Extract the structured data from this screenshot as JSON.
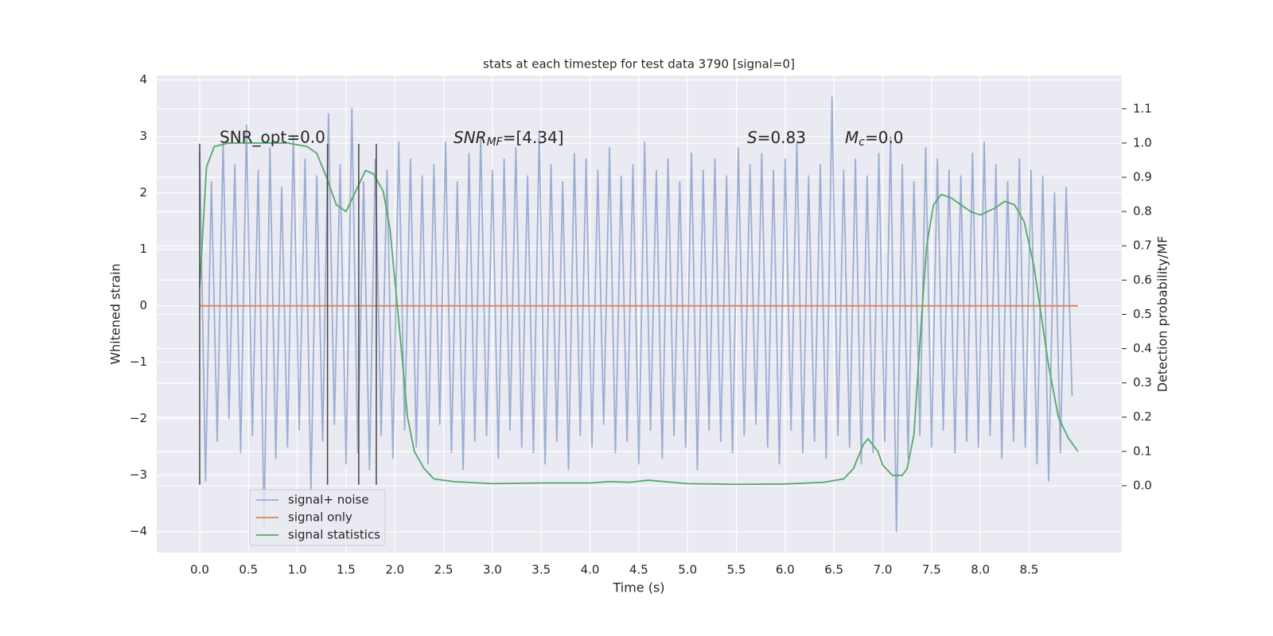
{
  "chart_data": {
    "type": "line",
    "title": "stats at each timestep for test data 3790 [signal=0]",
    "xlabel": "Time (s)",
    "ylabel": "Whitened strain",
    "y2label": "Detection probability/MF",
    "xlim": [
      -0.44,
      9.45
    ],
    "ylim": [
      -4.37,
      4.08
    ],
    "y2lim": [
      -0.195,
      1.197
    ],
    "xticks": [
      {
        "value": 0,
        "label": "0.0"
      },
      0.5,
      {
        "value": 1,
        "label": "1.0"
      },
      1.5,
      {
        "value": 2,
        "label": "2.0"
      },
      2.5,
      {
        "value": 3,
        "label": "3.0"
      },
      3.5,
      {
        "value": 4,
        "label": "4.0"
      },
      4.5,
      {
        "value": 5,
        "label": "5.0"
      },
      5.5,
      {
        "value": 6,
        "label": "6.0"
      },
      6.5,
      {
        "value": 7,
        "label": "7.0"
      },
      7.5,
      {
        "value": 8,
        "label": "8.0"
      },
      8.5
    ],
    "yticks": [
      {
        "value": -4,
        "label": "−4"
      },
      {
        "value": -3,
        "label": "−3"
      },
      {
        "value": -2,
        "label": "−2"
      },
      {
        "value": -1,
        "label": "−1"
      },
      0,
      1,
      2,
      3,
      4
    ],
    "y2ticks": [
      {
        "value": 0,
        "label": "0.0"
      },
      0.1,
      0.2,
      0.3,
      0.4,
      0.5,
      0.6,
      0.7,
      0.8,
      0.9,
      {
        "value": 1,
        "label": "1.0"
      },
      1.1
    ],
    "grid": true,
    "legend": "lower left",
    "series": [
      {
        "name": "signal+ noise",
        "color": "#4c72b0",
        "alpha": 0.5,
        "x": [
          0,
          0.06,
          0.12,
          0.18,
          0.24,
          0.3,
          0.36,
          0.42,
          0.48,
          0.54,
          0.6,
          0.66,
          0.72,
          0.78,
          0.84,
          0.9,
          0.96,
          1.02,
          1.08,
          1.14,
          1.2,
          1.26,
          1.32,
          1.38,
          1.44,
          1.5,
          1.56,
          1.62,
          1.68,
          1.74,
          1.8,
          1.86,
          1.92,
          1.98,
          2.04,
          2.1,
          2.16,
          2.22,
          2.28,
          2.34,
          2.4,
          2.46,
          2.52,
          2.58,
          2.64,
          2.7,
          2.76,
          2.82,
          2.88,
          2.94,
          3.0,
          3.06,
          3.12,
          3.18,
          3.24,
          3.3,
          3.36,
          3.42,
          3.48,
          3.54,
          3.6,
          3.66,
          3.72,
          3.78,
          3.84,
          3.9,
          3.96,
          4.02,
          4.08,
          4.14,
          4.2,
          4.26,
          4.32,
          4.38,
          4.44,
          4.5,
          4.56,
          4.62,
          4.68,
          4.74,
          4.8,
          4.86,
          4.92,
          4.98,
          5.04,
          5.1,
          5.16,
          5.22,
          5.28,
          5.34,
          5.4,
          5.46,
          5.52,
          5.58,
          5.64,
          5.7,
          5.76,
          5.82,
          5.88,
          5.94,
          6.0,
          6.06,
          6.12,
          6.18,
          6.24,
          6.3,
          6.36,
          6.42,
          6.48,
          6.54,
          6.6,
          6.66,
          6.72,
          6.78,
          6.84,
          6.9,
          6.96,
          7.02,
          7.08,
          7.14,
          7.2,
          7.26,
          7.32,
          7.38,
          7.44,
          7.5,
          7.56,
          7.62,
          7.68,
          7.74,
          7.8,
          7.86,
          7.92,
          7.98,
          8.04,
          8.1,
          8.16,
          8.22,
          8.28,
          8.34,
          8.4,
          8.46,
          8.52,
          8.58,
          8.64,
          8.7,
          8.76,
          8.82,
          8.88,
          8.94
        ],
        "values": [
          2.7,
          -3.1,
          2.2,
          -2.4,
          2.9,
          -2.0,
          2.5,
          -2.6,
          3.2,
          -2.3,
          2.4,
          -3.9,
          2.8,
          -2.7,
          2.1,
          -2.5,
          3.0,
          -2.2,
          2.6,
          -3.3,
          2.3,
          -2.4,
          3.4,
          -2.1,
          2.5,
          -2.8,
          3.5,
          -2.6,
          2.2,
          -2.9,
          2.6,
          -2.3,
          2.4,
          -2.7,
          2.9,
          -2.2,
          2.6,
          -2.5,
          2.3,
          -2.8,
          2.5,
          -2.1,
          2.9,
          -2.6,
          2.2,
          -2.9,
          2.7,
          -2.4,
          3.0,
          -2.3,
          2.4,
          -2.7,
          2.6,
          -2.2,
          2.8,
          -2.5,
          2.3,
          -2.6,
          3.1,
          -2.8,
          2.5,
          -2.4,
          2.2,
          -2.9,
          2.7,
          -2.3,
          2.6,
          -2.5,
          2.4,
          -2.1,
          2.8,
          -2.6,
          2.3,
          -2.4,
          2.5,
          -2.8,
          2.9,
          -2.2,
          2.4,
          -2.7,
          2.6,
          -2.3,
          2.2,
          -2.5,
          2.7,
          -2.9,
          2.4,
          -2.2,
          2.6,
          -2.4,
          2.3,
          -2.6,
          2.8,
          -2.3,
          2.5,
          -2.1,
          2.7,
          -2.5,
          2.4,
          -2.8,
          2.6,
          -2.2,
          2.9,
          -2.6,
          2.3,
          -2.4,
          2.5,
          -2.7,
          3.7,
          -2.3,
          2.4,
          -2.5,
          2.6,
          -2.8,
          2.3,
          -2.6,
          2.7,
          -2.4,
          3.0,
          -4.0,
          2.5,
          -2.7,
          2.2,
          -2.3,
          2.8,
          -2.5,
          2.6,
          -2.2,
          2.4,
          -2.6,
          2.3,
          -2.4,
          2.7,
          -2.5,
          2.9,
          -2.3,
          2.5,
          -2.7,
          2.2,
          -2.4,
          2.6,
          -2.5,
          2.4,
          -2.8,
          2.3,
          -3.1,
          2.0,
          -2.6,
          2.1,
          -1.6
        ]
      },
      {
        "name": "signal only",
        "color": "#dd8452",
        "x": [
          0,
          9
        ],
        "values": [
          0,
          0
        ]
      },
      {
        "name": "signal statistics",
        "color": "#55a868",
        "axis": "y2",
        "x": [
          0,
          0.07,
          0.15,
          0.3,
          0.6,
          0.9,
          1.1,
          1.2,
          1.3,
          1.4,
          1.5,
          1.6,
          1.7,
          1.78,
          1.88,
          1.95,
          2.05,
          2.13,
          2.2,
          2.3,
          2.4,
          2.6,
          3.0,
          3.5,
          4.0,
          4.2,
          4.4,
          4.6,
          5.0,
          5.5,
          6.0,
          6.4,
          6.6,
          6.7,
          6.8,
          6.85,
          6.95,
          7.0,
          7.1,
          7.2,
          7.25,
          7.32,
          7.4,
          7.45,
          7.52,
          7.6,
          7.7,
          7.9,
          8.0,
          8.15,
          8.25,
          8.35,
          8.45,
          8.55,
          8.7,
          8.8,
          8.9,
          9.0
        ],
        "values": [
          0.58,
          0.93,
          0.99,
          1.0,
          1.0,
          1.0,
          0.99,
          0.97,
          0.9,
          0.82,
          0.8,
          0.86,
          0.92,
          0.91,
          0.86,
          0.75,
          0.45,
          0.2,
          0.1,
          0.05,
          0.02,
          0.012,
          0.006,
          0.008,
          0.008,
          0.012,
          0.01,
          0.016,
          0.006,
          0.004,
          0.005,
          0.01,
          0.02,
          0.05,
          0.12,
          0.137,
          0.1,
          0.06,
          0.03,
          0.03,
          0.05,
          0.15,
          0.5,
          0.7,
          0.82,
          0.85,
          0.84,
          0.8,
          0.79,
          0.81,
          0.83,
          0.82,
          0.77,
          0.64,
          0.35,
          0.2,
          0.14,
          0.1
        ]
      }
    ],
    "markers": {
      "x": [
        0,
        1.31,
        1.63,
        1.81
      ],
      "ymin": -3.17,
      "ymax": 2.87
    },
    "annotations": [
      {
        "text": "SNR_opt=0.0"
      },
      {
        "base": "SNR",
        "sub": "MF",
        "rest": "=[4.34]"
      },
      {
        "base": "S",
        "rest": "=0.83"
      },
      {
        "base": "M",
        "sub": "c",
        "rest": "=0.0"
      }
    ]
  }
}
